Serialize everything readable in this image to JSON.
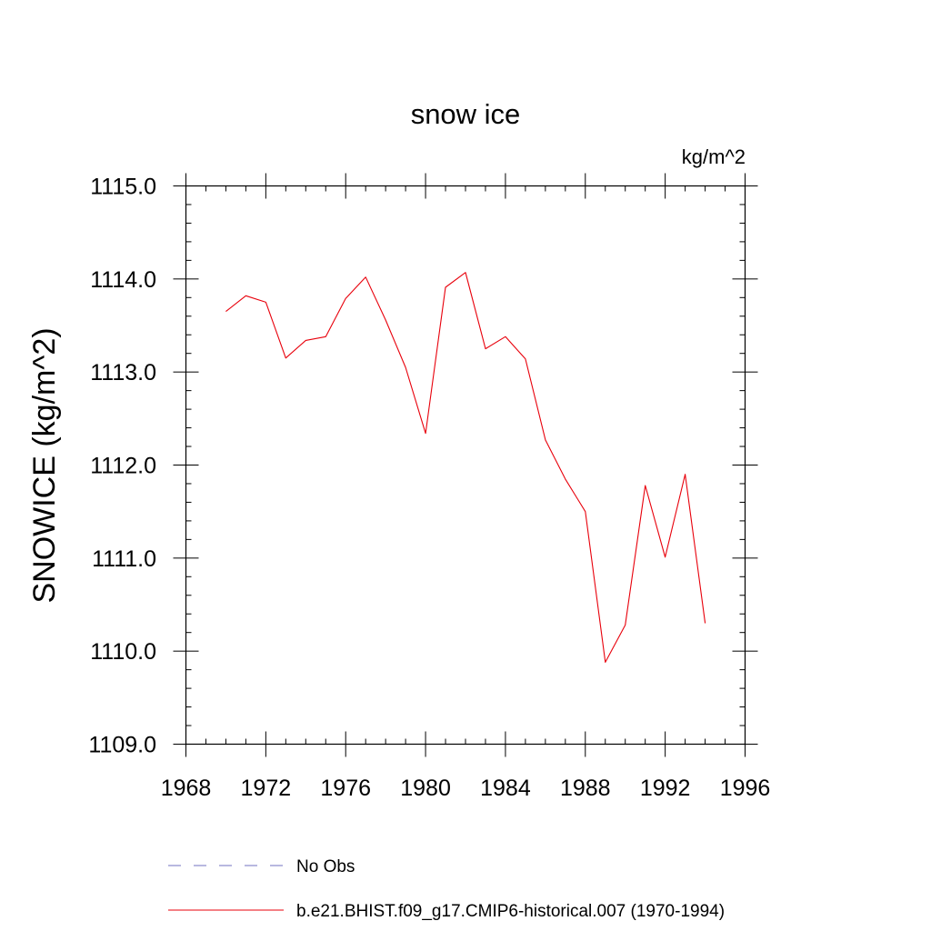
{
  "chart_data": {
    "type": "line",
    "title": "snow ice",
    "units_label": "kg/m^2",
    "ylabel": "SNOWICE  (kg/m^2)",
    "xlabel": "",
    "xlim": [
      1968,
      1996
    ],
    "ylim": [
      1109.0,
      1115.0
    ],
    "x_ticks": [
      1968,
      1972,
      1976,
      1980,
      1984,
      1988,
      1992,
      1996
    ],
    "y_ticks": [
      "1109.0",
      "1110.0",
      "1111.0",
      "1112.0",
      "1113.0",
      "1114.0",
      "1115.0"
    ],
    "grid": false,
    "legend_position": "bottom",
    "legend": [
      {
        "label": "No Obs",
        "style": "dashed",
        "color": "#7070c0"
      },
      {
        "label": "b.e21.BHIST.f09_g17.CMIP6-historical.007 (1970-1994)",
        "style": "solid",
        "color": "#e8000b"
      }
    ],
    "series": [
      {
        "name": "b.e21.BHIST.f09_g17.CMIP6-historical.007 (1970-1994)",
        "color": "#e8000b",
        "x": [
          1970,
          1971,
          1972,
          1973,
          1974,
          1975,
          1976,
          1977,
          1978,
          1979,
          1980,
          1981,
          1982,
          1983,
          1984,
          1985,
          1986,
          1987,
          1988,
          1989,
          1990,
          1991,
          1992,
          1993,
          1994
        ],
        "y": [
          1113.65,
          1113.82,
          1113.75,
          1113.15,
          1113.34,
          1113.38,
          1113.79,
          1114.02,
          1113.56,
          1113.05,
          1112.34,
          1113.91,
          1114.07,
          1113.25,
          1113.38,
          1113.14,
          1112.27,
          1111.85,
          1111.5,
          1109.88,
          1110.28,
          1111.78,
          1111.01,
          1111.9,
          1110.3
        ]
      }
    ]
  }
}
